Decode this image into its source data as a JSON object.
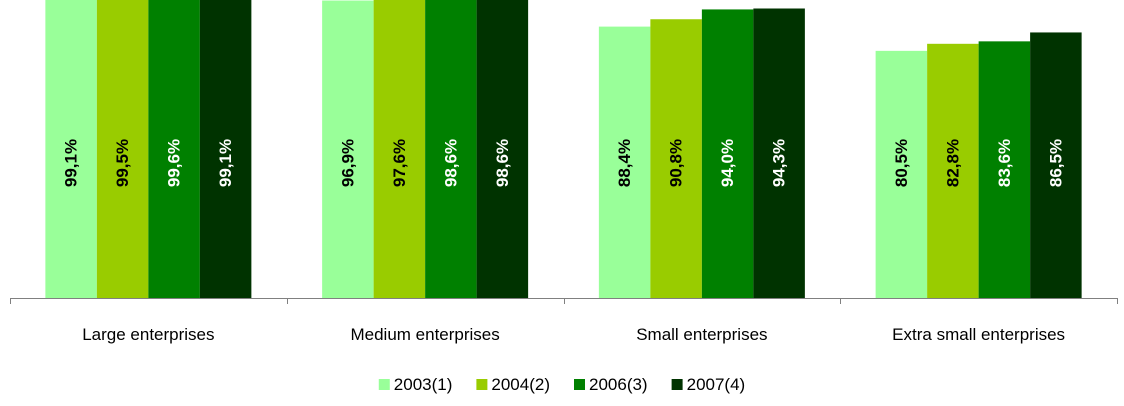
{
  "chart_data": {
    "type": "bar",
    "categories": [
      "Large enterprises",
      "Medium enterprises",
      "Small enterprises",
      "Extra small enterprises"
    ],
    "series": [
      {
        "name": "2003(1)",
        "values": [
          99.1,
          96.9,
          88.4,
          80.5
        ],
        "labels": [
          "99,1%",
          "96,9%",
          "88,4%",
          "80,5%"
        ],
        "color": "#99ff99",
        "label_color": "#000000"
      },
      {
        "name": "2004(2)",
        "values": [
          99.5,
          97.6,
          90.8,
          82.8
        ],
        "labels": [
          "99,5%",
          "97,6%",
          "90,8%",
          "82,8%"
        ],
        "color": "#99cc00",
        "label_color": "#000000"
      },
      {
        "name": "2006(3)",
        "values": [
          99.6,
          98.6,
          94.0,
          83.6
        ],
        "labels": [
          "99,6%",
          "98,6%",
          "94,0%",
          "83,6%"
        ],
        "color": "#008000",
        "label_color": "#ffffff"
      },
      {
        "name": "2007(4)",
        "values": [
          99.1,
          98.6,
          94.3,
          86.5
        ],
        "labels": [
          "99,1%",
          "98,6%",
          "94,3%",
          "86,5%"
        ],
        "color": "#003300",
        "label_color": "#ffffff"
      }
    ],
    "ylim": [
      0,
      100
    ],
    "grid": false,
    "legend_position": "bottom",
    "title": "",
    "xlabel": "",
    "ylabel": ""
  }
}
